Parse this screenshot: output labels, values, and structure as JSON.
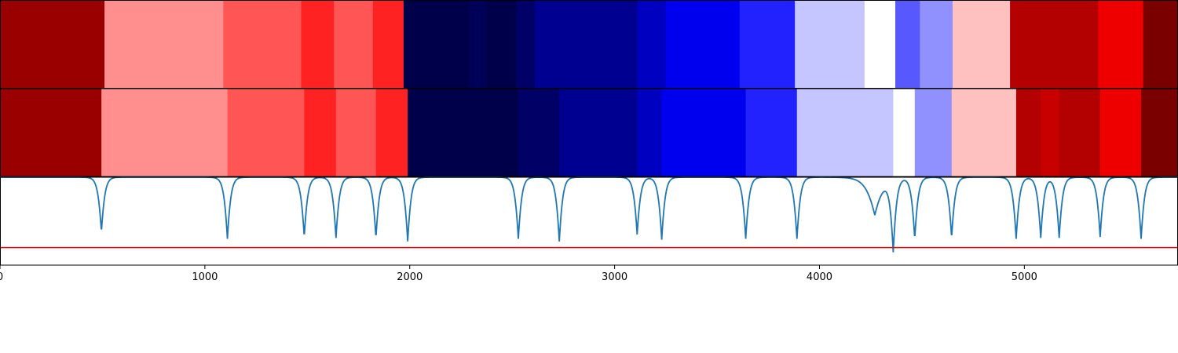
{
  "chart_data": [
    {
      "type": "heatmap",
      "name": "segmentation-a",
      "segments": [
        {
          "start": 0,
          "end": 510,
          "color": "#9b0000"
        },
        {
          "start": 510,
          "end": 1090,
          "color": "#ff8f8f"
        },
        {
          "start": 1090,
          "end": 1470,
          "color": "#ff5555"
        },
        {
          "start": 1470,
          "end": 1630,
          "color": "#ff2222"
        },
        {
          "start": 1630,
          "end": 1820,
          "color": "#ff5555"
        },
        {
          "start": 1820,
          "end": 1970,
          "color": "#ff2222"
        },
        {
          "start": 1970,
          "end": 2290,
          "color": "#00004a"
        },
        {
          "start": 2290,
          "end": 2370,
          "color": "#000059"
        },
        {
          "start": 2370,
          "end": 2520,
          "color": "#00004a"
        },
        {
          "start": 2520,
          "end": 2610,
          "color": "#000066"
        },
        {
          "start": 2610,
          "end": 3110,
          "color": "#000090"
        },
        {
          "start": 3110,
          "end": 3250,
          "color": "#0000c0"
        },
        {
          "start": 3250,
          "end": 3610,
          "color": "#0000ee"
        },
        {
          "start": 3610,
          "end": 3880,
          "color": "#2222ff"
        },
        {
          "start": 3880,
          "end": 4220,
          "color": "#c5c5ff"
        },
        {
          "start": 4220,
          "end": 4370,
          "color": "#ffffff"
        },
        {
          "start": 4370,
          "end": 4490,
          "color": "#5858ff"
        },
        {
          "start": 4490,
          "end": 4650,
          "color": "#9090ff"
        },
        {
          "start": 4650,
          "end": 4930,
          "color": "#ffc0c0"
        },
        {
          "start": 4930,
          "end": 5360,
          "color": "#b30000"
        },
        {
          "start": 5360,
          "end": 5580,
          "color": "#ee0000"
        },
        {
          "start": 5580,
          "end": 5750,
          "color": "#7a0000"
        }
      ]
    },
    {
      "type": "heatmap",
      "name": "segmentation-b",
      "segments": [
        {
          "start": 0,
          "end": 495,
          "color": "#9b0000"
        },
        {
          "start": 495,
          "end": 1110,
          "color": "#ff8f8f"
        },
        {
          "start": 1110,
          "end": 1485,
          "color": "#ff5555"
        },
        {
          "start": 1485,
          "end": 1640,
          "color": "#ff2222"
        },
        {
          "start": 1640,
          "end": 1835,
          "color": "#ff5555"
        },
        {
          "start": 1835,
          "end": 1990,
          "color": "#ff2222"
        },
        {
          "start": 1990,
          "end": 2530,
          "color": "#00004a"
        },
        {
          "start": 2530,
          "end": 2730,
          "color": "#000066"
        },
        {
          "start": 2730,
          "end": 3110,
          "color": "#000090"
        },
        {
          "start": 3110,
          "end": 3230,
          "color": "#0000c0"
        },
        {
          "start": 3230,
          "end": 3640,
          "color": "#0000ee"
        },
        {
          "start": 3640,
          "end": 3890,
          "color": "#2222ff"
        },
        {
          "start": 3890,
          "end": 4360,
          "color": "#c5c5ff"
        },
        {
          "start": 4360,
          "end": 4465,
          "color": "#ffffff"
        },
        {
          "start": 4465,
          "end": 4645,
          "color": "#9090ff"
        },
        {
          "start": 4645,
          "end": 4960,
          "color": "#ffc0c0"
        },
        {
          "start": 4960,
          "end": 5080,
          "color": "#b30000"
        },
        {
          "start": 5080,
          "end": 5170,
          "color": "#c90000"
        },
        {
          "start": 5170,
          "end": 5370,
          "color": "#b30000"
        },
        {
          "start": 5370,
          "end": 5570,
          "color": "#ee0000"
        },
        {
          "start": 5570,
          "end": 5750,
          "color": "#7a0000"
        }
      ]
    },
    {
      "type": "line",
      "name": "boundary-score",
      "series_color": "#1f77b4",
      "threshold": 0.2,
      "threshold_color": "#ff0000",
      "baseline": 1.0,
      "ylim": [
        0,
        1
      ],
      "dips": [
        {
          "x": 495,
          "depth": 0.62
        },
        {
          "x": 1110,
          "depth": 0.7
        },
        {
          "x": 1485,
          "depth": 0.68
        },
        {
          "x": 1640,
          "depth": 0.69
        },
        {
          "x": 1835,
          "depth": 0.69
        },
        {
          "x": 1990,
          "depth": 0.73
        },
        {
          "x": 2530,
          "depth": 0.7
        },
        {
          "x": 2730,
          "depth": 0.73
        },
        {
          "x": 3110,
          "depth": 0.65
        },
        {
          "x": 3230,
          "depth": 0.71
        },
        {
          "x": 3640,
          "depth": 0.7
        },
        {
          "x": 3890,
          "depth": 0.7
        },
        {
          "x": 4270,
          "depth": 0.43
        },
        {
          "x": 4360,
          "depth": 0.82
        },
        {
          "x": 4465,
          "depth": 0.7
        },
        {
          "x": 4645,
          "depth": 0.69
        },
        {
          "x": 4960,
          "depth": 0.7
        },
        {
          "x": 5080,
          "depth": 0.69
        },
        {
          "x": 5170,
          "depth": 0.69
        },
        {
          "x": 5370,
          "depth": 0.68
        },
        {
          "x": 5570,
          "depth": 0.7
        }
      ]
    }
  ],
  "x_axis": {
    "xlim": [
      0,
      5750
    ],
    "ticks": [
      0,
      1000,
      2000,
      3000,
      4000,
      5000
    ],
    "tick_labels": [
      "0",
      "1000",
      "2000",
      "3000",
      "4000",
      "5000"
    ]
  }
}
